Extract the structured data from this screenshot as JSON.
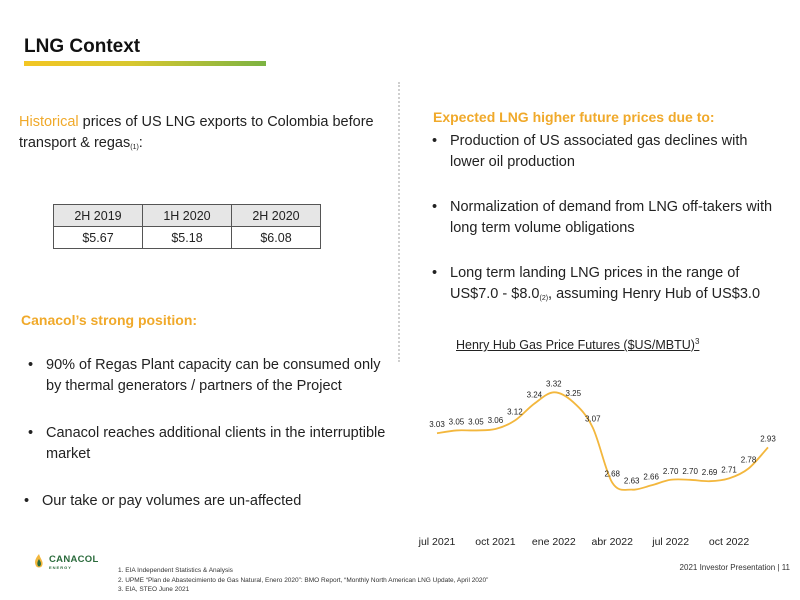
{
  "slide": {
    "title": "LNG Context",
    "footer": "2021 Investor Presentation | 11"
  },
  "historical": {
    "highlight": "Historical",
    "text": " prices of US LNG exports to Colombia before transport & regas",
    "sub": "(1)",
    "tail": ":"
  },
  "price_table": {
    "headers": [
      "2H 2019",
      "1H 2020",
      "2H 2020"
    ],
    "values": [
      "$5.67",
      "$5.18",
      "$6.08"
    ]
  },
  "strong_position": {
    "heading": "Canacol’s strong position:",
    "bullets": [
      "90% of Regas Plant capacity can be consumed only by thermal generators / partners of the Project",
      "Canacol reaches additional clients in the interruptible market",
      "Our take or pay volumes are un-affected"
    ]
  },
  "expected": {
    "heading": "Expected LNG higher future prices due to:",
    "bullet1": "Production of US associated gas declines with lower oil production",
    "bullet2": "Normalization of demand from LNG off-takers with long term volume obligations",
    "bullet3_a": "Long term landing LNG prices in the range of US$7.0 - $8.0",
    "bullet3_sub": "(2)",
    "bullet3_b": ", assuming Henry Hub of US$3.0"
  },
  "chart_title": {
    "text": "Henry Hub Gas Price Futures ($US/MBTU)",
    "sup": "3"
  },
  "chart_data": {
    "type": "line",
    "title": "Henry Hub Gas Price Futures ($US/MBTU)",
    "x": [
      "jul 2021",
      "ago 2021",
      "sep 2021",
      "oct 2021",
      "nov 2021",
      "dic 2021",
      "ene 2022",
      "feb 2022",
      "mar 2022",
      "abr 2022",
      "may 2022",
      "jun 2022",
      "jul 2022",
      "ago 2022",
      "sep 2022",
      "oct 2022",
      "nov 2022",
      "dic 2022"
    ],
    "series": [
      {
        "values": [
          3.03,
          3.05,
          3.05,
          3.06,
          3.12,
          3.24,
          3.32,
          3.25,
          3.07,
          2.68,
          2.63,
          2.66,
          2.7,
          2.7,
          2.69,
          2.71,
          2.78,
          2.93
        ]
      }
    ],
    "x_ticks": [
      {
        "index": 0,
        "label": "jul 2021"
      },
      {
        "index": 3,
        "label": "oct 2021"
      },
      {
        "index": 6,
        "label": "ene 2022"
      },
      {
        "index": 9,
        "label": "abr 2022"
      },
      {
        "index": 12,
        "label": "jul 2022"
      },
      {
        "index": 15,
        "label": "oct 2022"
      }
    ],
    "ylim": [
      2.5,
      3.45
    ],
    "line_color": "#f3b73d",
    "grid": false,
    "legend": "none"
  },
  "logo": {
    "name": "CANACOL",
    "sub": "ENERGY"
  },
  "footnotes": [
    "1.   EIA Independent Statistics & Analysis",
    "2.   UPME “Plan de Abastecimiento de Gas Natural, Enero 2020”: BMO Report, “Monthly North American LNG Update, April 2020”",
    "3.   EIA, STEO June 2021"
  ],
  "colors": {
    "accent_orange": "#f0a92a",
    "bar_yellow": "#f3c623",
    "bar_green": "#7cb342",
    "logo_green": "#2b6b3c"
  }
}
